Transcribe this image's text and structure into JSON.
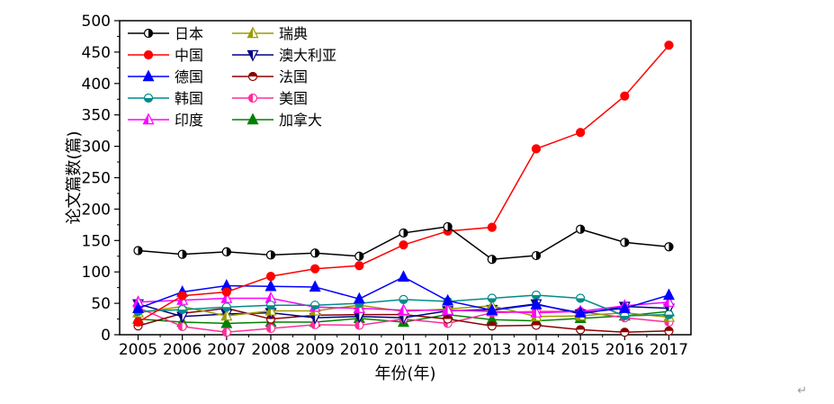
{
  "page": {
    "background": "#ffffff"
  },
  "artifacts": {
    "paragraph_mark": "↵"
  },
  "chart_data": {
    "type": "line",
    "title": "",
    "xlabel": "年份(年)",
    "ylabel": "论文篇数(篇)",
    "x": [
      2005,
      2006,
      2007,
      2008,
      2009,
      2010,
      2011,
      2012,
      2013,
      2014,
      2015,
      2016,
      2017
    ],
    "x_ticks": [
      "2005",
      "2006",
      "2007",
      "2008",
      "2009",
      "2010",
      "2011",
      "2012",
      "2013",
      "2014",
      "2015",
      "2016",
      "2017"
    ],
    "ylim": [
      0,
      500
    ],
    "y_major_step": 50,
    "y_minor_step": 25,
    "y_ticks": [
      0,
      50,
      100,
      150,
      200,
      250,
      300,
      350,
      400,
      450,
      500
    ],
    "grid": false,
    "legend_position": "inside top-left, two columns, no frame",
    "series": [
      {
        "id": "japan",
        "name": "日本",
        "color": "#000000",
        "marker": "circle",
        "fill": "half-right",
        "values": [
          134,
          128,
          132,
          127,
          130,
          125,
          162,
          172,
          120,
          126,
          168,
          147,
          140
        ]
      },
      {
        "id": "china",
        "name": "中国",
        "color": "#ff0000",
        "marker": "circle",
        "fill": "solid",
        "values": [
          20,
          62,
          68,
          93,
          105,
          110,
          143,
          165,
          171,
          296,
          322,
          380,
          461
        ]
      },
      {
        "id": "germany",
        "name": "德国",
        "color": "#0000ff",
        "marker": "triangle-up",
        "fill": "solid",
        "values": [
          42,
          68,
          78,
          77,
          76,
          57,
          92,
          54,
          39,
          48,
          35,
          42,
          63
        ]
      },
      {
        "id": "korea",
        "name": "韩国",
        "color": "#008b8b",
        "marker": "circle",
        "fill": "half-bottom",
        "values": [
          37,
          40,
          44,
          47,
          47,
          50,
          56,
          53,
          58,
          63,
          58,
          30,
          32
        ]
      },
      {
        "id": "india",
        "name": "印度",
        "color": "#ff00ff",
        "marker": "triangle-up",
        "fill": "half-left",
        "values": [
          52,
          55,
          58,
          58,
          44,
          42,
          39,
          39,
          37,
          35,
          37,
          46,
          52
        ]
      },
      {
        "id": "sweden",
        "name": "瑞典",
        "color": "#9b9b00",
        "marker": "triangle-up",
        "fill": "half-left",
        "values": [
          35,
          45,
          30,
          38,
          38,
          47,
          37,
          41,
          46,
          29,
          30,
          35,
          28
        ]
      },
      {
        "id": "australia",
        "name": "澳大利亚",
        "color": "#000080",
        "marker": "triangle-down",
        "fill": "half-left",
        "values": [
          49,
          29,
          33,
          35,
          27,
          29,
          27,
          38,
          40,
          49,
          33,
          45,
          42
        ]
      },
      {
        "id": "france",
        "name": "法国",
        "color": "#8b0000",
        "marker": "circle",
        "fill": "half-top",
        "values": [
          14,
          34,
          42,
          25,
          31,
          32,
          32,
          25,
          14,
          15,
          8,
          4,
          6
        ]
      },
      {
        "id": "usa",
        "name": "美国",
        "color": "#ff2d9b",
        "marker": "circle",
        "fill": "half-left",
        "values": [
          43,
          13,
          4,
          10,
          16,
          15,
          25,
          18,
          35,
          37,
          37,
          27,
          20
        ]
      },
      {
        "id": "canada",
        "name": "加拿大",
        "color": "#008000",
        "marker": "triangle-up",
        "fill": "solid",
        "values": [
          25,
          20,
          18,
          20,
          20,
          26,
          20,
          32,
          24,
          22,
          26,
          30,
          37
        ]
      }
    ]
  }
}
